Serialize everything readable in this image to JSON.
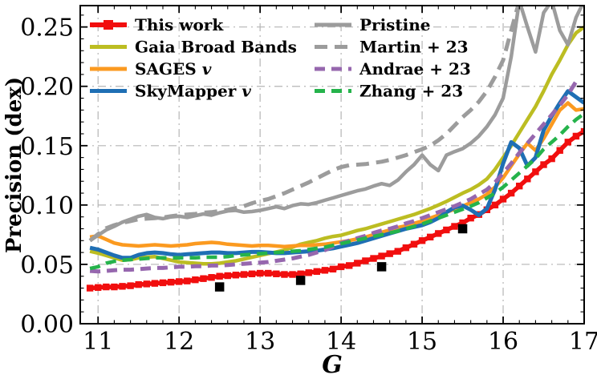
{
  "figure_title": "",
  "axes": {
    "x_tick_labels": [
      "11",
      "12",
      "13",
      "14",
      "15",
      "16",
      "17"
    ],
    "x_tick_values": [
      11,
      12,
      13,
      14,
      15,
      16,
      17
    ],
    "y_tick_labels": [
      "0.00",
      "0.05",
      "0.10",
      "0.15",
      "0.20",
      "0.25"
    ],
    "y_tick_values": [
      0,
      0.05,
      0.1,
      0.15,
      0.2,
      0.25
    ],
    "minor_x_step": 0.2,
    "minor_y_step": 0.01,
    "grid_color": "#b5b5b5",
    "spine_color": "#000000"
  },
  "legend": {
    "columns": [
      {
        "items": [
          {
            "label": "This work",
            "label_main": "This work",
            "label_italic": "",
            "series_index": 0
          },
          {
            "label": "Gaia Broad Bands",
            "label_main": "Gaia Broad Bands",
            "label_italic": "",
            "series_index": 1
          },
          {
            "label": "SAGES v",
            "label_main": "SAGES ",
            "label_italic": "v",
            "series_index": 2
          },
          {
            "label": "SkyMapper v",
            "label_main": "SkyMapper ",
            "label_italic": "v",
            "series_index": 3
          }
        ]
      },
      {
        "items": [
          {
            "label": "Pristine",
            "label_main": "Pristine",
            "label_italic": "",
            "series_index": 4
          },
          {
            "label": "Martin + 23",
            "label_main": "Martin + 23",
            "label_italic": "",
            "series_index": 5
          },
          {
            "label": "Andrae + 23",
            "label_main": "Andrae + 23",
            "label_italic": "",
            "series_index": 6
          },
          {
            "label": "Zhang + 23",
            "label_main": "Zhang + 23",
            "label_italic": "",
            "series_index": 7
          }
        ]
      }
    ]
  },
  "chart_data": {
    "type": "line",
    "title": "",
    "xlabel": "G",
    "ylabel": "Precision (dex)",
    "xlim": [
      10.78,
      17.0
    ],
    "ylim": [
      0,
      0.268
    ],
    "grid": "dash-dot on major ticks, both axes",
    "legend_position": "upper left, two columns, no frame",
    "x": [
      10.9,
      11.0,
      11.1,
      11.2,
      11.3,
      11.4,
      11.5,
      11.6,
      11.7,
      11.8,
      11.9,
      12.0,
      12.1,
      12.2,
      12.3,
      12.4,
      12.5,
      12.6,
      12.7,
      12.8,
      12.9,
      13.0,
      13.1,
      13.2,
      13.3,
      13.4,
      13.5,
      13.6,
      13.7,
      13.8,
      13.9,
      14.0,
      14.1,
      14.2,
      14.3,
      14.4,
      14.5,
      14.6,
      14.7,
      14.8,
      14.9,
      15.0,
      15.1,
      15.2,
      15.3,
      15.4,
      15.5,
      15.6,
      15.7,
      15.8,
      15.9,
      16.0,
      16.1,
      16.2,
      16.3,
      16.4,
      16.5,
      16.6,
      16.7,
      16.8,
      16.9,
      17.0
    ],
    "series": [
      {
        "name": "This work",
        "color": "#f10e0e",
        "width": 5.5,
        "dash": null,
        "marker": "square",
        "marker_size": 8.4,
        "values": [
          0.03,
          0.0305,
          0.031,
          0.031,
          0.0315,
          0.032,
          0.033,
          0.0335,
          0.034,
          0.0345,
          0.035,
          0.0355,
          0.036,
          0.037,
          0.038,
          0.039,
          0.04,
          0.0405,
          0.041,
          0.0415,
          0.042,
          0.0425,
          0.0425,
          0.042,
          0.0415,
          0.0415,
          0.042,
          0.043,
          0.044,
          0.045,
          0.046,
          0.048,
          0.049,
          0.051,
          0.053,
          0.055,
          0.057,
          0.059,
          0.061,
          0.064,
          0.067,
          0.07,
          0.073,
          0.076,
          0.079,
          0.082,
          0.085,
          0.089,
          0.092,
          0.096,
          0.1,
          0.105,
          0.11,
          0.116,
          0.122,
          0.128,
          0.134,
          0.139,
          0.146,
          0.153,
          0.158,
          0.162
        ]
      },
      {
        "name": "Gaia Broad Bands",
        "color": "#bcbd22",
        "width": 4.5,
        "dash": null,
        "marker": null,
        "marker_size": 0,
        "values": [
          0.061,
          0.0595,
          0.0575,
          0.0555,
          0.0535,
          0.054,
          0.0555,
          0.056,
          0.0565,
          0.055,
          0.0535,
          0.052,
          0.0515,
          0.051,
          0.0505,
          0.0505,
          0.051,
          0.052,
          0.053,
          0.0545,
          0.056,
          0.0575,
          0.059,
          0.0605,
          0.062,
          0.0645,
          0.067,
          0.0685,
          0.07,
          0.072,
          0.0735,
          0.0745,
          0.0765,
          0.0785,
          0.08,
          0.082,
          0.084,
          0.086,
          0.088,
          0.09,
          0.092,
          0.0945,
          0.097,
          0.1,
          0.103,
          0.1065,
          0.11,
          0.113,
          0.117,
          0.122,
          0.13,
          0.14,
          0.15,
          0.161,
          0.172,
          0.183,
          0.196,
          0.21,
          0.222,
          0.235,
          0.245,
          0.25
        ]
      },
      {
        "name": "SAGES v",
        "color": "#fb9a20",
        "width": 4.5,
        "dash": null,
        "marker": null,
        "marker_size": 0,
        "values": [
          0.073,
          0.074,
          0.071,
          0.068,
          0.0665,
          0.066,
          0.0655,
          0.066,
          0.0665,
          0.066,
          0.0655,
          0.066,
          0.0665,
          0.0675,
          0.068,
          0.0685,
          0.068,
          0.067,
          0.0665,
          0.066,
          0.0655,
          0.066,
          0.066,
          0.0655,
          0.065,
          0.0655,
          0.066,
          0.066,
          0.0665,
          0.067,
          0.068,
          0.069,
          0.07,
          0.0715,
          0.073,
          0.075,
          0.077,
          0.079,
          0.081,
          0.0825,
          0.0845,
          0.0865,
          0.089,
          0.0915,
          0.094,
          0.0965,
          0.099,
          0.102,
          0.105,
          0.109,
          0.115,
          0.123,
          0.133,
          0.143,
          0.152,
          0.146,
          0.156,
          0.168,
          0.18,
          0.186,
          0.18,
          0.181
        ]
      },
      {
        "name": "SkyMapper v",
        "color": "#1f6fb4",
        "width": 5,
        "dash": null,
        "marker": null,
        "marker_size": 0,
        "values": [
          0.064,
          0.0625,
          0.06,
          0.0575,
          0.0555,
          0.0555,
          0.058,
          0.0595,
          0.06,
          0.0595,
          0.0585,
          0.058,
          0.0585,
          0.059,
          0.0595,
          0.06,
          0.06,
          0.0595,
          0.0595,
          0.06,
          0.0605,
          0.0605,
          0.06,
          0.0595,
          0.0595,
          0.06,
          0.0605,
          0.061,
          0.0615,
          0.0625,
          0.0635,
          0.065,
          0.0665,
          0.068,
          0.07,
          0.072,
          0.074,
          0.076,
          0.078,
          0.08,
          0.0815,
          0.083,
          0.0855,
          0.089,
          0.094,
          0.098,
          0.0995,
          0.096,
          0.0915,
          0.097,
          0.113,
          0.135,
          0.153,
          0.148,
          0.133,
          0.14,
          0.163,
          0.175,
          0.186,
          0.196,
          0.191,
          0.186
        ]
      },
      {
        "name": "Pristine",
        "color": "#9c9c9c",
        "width": 4.5,
        "dash": null,
        "marker": null,
        "marker_size": 0,
        "values": [
          0.07,
          0.0745,
          0.079,
          0.082,
          0.0855,
          0.088,
          0.0905,
          0.092,
          0.0895,
          0.0885,
          0.09,
          0.0905,
          0.0895,
          0.091,
          0.0925,
          0.0915,
          0.0935,
          0.095,
          0.0955,
          0.094,
          0.0945,
          0.0955,
          0.097,
          0.0985,
          0.097,
          0.0995,
          0.101,
          0.1005,
          0.102,
          0.104,
          0.106,
          0.108,
          0.11,
          0.112,
          0.1135,
          0.116,
          0.118,
          0.1165,
          0.121,
          0.128,
          0.134,
          0.142,
          0.134,
          0.129,
          0.142,
          0.145,
          0.1475,
          0.152,
          0.158,
          0.166,
          0.176,
          0.19,
          0.225,
          0.272,
          0.25,
          0.229,
          0.262,
          0.272,
          0.247,
          0.235,
          0.258,
          0.272
        ]
      },
      {
        "name": "Martin + 23",
        "color": "#9c9c9c",
        "width": 5,
        "dash": [
          16,
          9
        ],
        "marker": null,
        "marker_size": 0,
        "values": [
          0.07,
          0.0755,
          0.0805,
          0.083,
          0.085,
          0.0865,
          0.088,
          0.0885,
          0.089,
          0.0895,
          0.0905,
          0.0915,
          0.092,
          0.0925,
          0.0935,
          0.094,
          0.095,
          0.096,
          0.0975,
          0.099,
          0.1015,
          0.1035,
          0.105,
          0.1075,
          0.11,
          0.113,
          0.116,
          0.119,
          0.1225,
          0.126,
          0.1295,
          0.132,
          0.1335,
          0.134,
          0.1345,
          0.1355,
          0.1365,
          0.138,
          0.14,
          0.142,
          0.1445,
          0.147,
          0.15,
          0.1545,
          0.16,
          0.167,
          0.174,
          0.18,
          0.187,
          0.196,
          0.208,
          0.222,
          0.247,
          0.272,
          null,
          null,
          null,
          null,
          null,
          null,
          null,
          null
        ]
      },
      {
        "name": "Andrae + 23",
        "color": "#9667ae",
        "width": 5,
        "dash": [
          13,
          8
        ],
        "marker": null,
        "marker_size": 0,
        "values": [
          0.0445,
          0.044,
          0.0445,
          0.045,
          0.0455,
          0.0455,
          0.046,
          0.0465,
          0.047,
          0.047,
          0.0475,
          0.048,
          0.048,
          0.0485,
          0.0485,
          0.049,
          0.049,
          0.0495,
          0.05,
          0.0505,
          0.051,
          0.0515,
          0.052,
          0.053,
          0.054,
          0.055,
          0.0565,
          0.058,
          0.06,
          0.062,
          0.065,
          0.068,
          0.07,
          0.072,
          0.074,
          0.0765,
          0.0785,
          0.08,
          0.082,
          0.0845,
          0.0865,
          0.089,
          0.0915,
          0.094,
          0.0965,
          0.099,
          0.102,
          0.105,
          0.109,
          0.113,
          0.119,
          0.127,
          0.135,
          0.144,
          0.152,
          0.16,
          0.168,
          0.176,
          0.184,
          0.193,
          0.204,
          null
        ]
      },
      {
        "name": "Zhang + 23",
        "color": "#25b34b",
        "width": 4.5,
        "dash": [
          13,
          8
        ],
        "marker": null,
        "marker_size": 0,
        "values": [
          0.0465,
          0.048,
          0.051,
          0.0525,
          0.0535,
          0.054,
          0.0545,
          0.055,
          0.0555,
          0.0555,
          0.0555,
          0.0555,
          0.0555,
          0.0555,
          0.056,
          0.056,
          0.056,
          0.0565,
          0.0575,
          0.058,
          0.0585,
          0.059,
          0.0595,
          0.06,
          0.0605,
          0.061,
          0.0615,
          0.0625,
          0.0635,
          0.0645,
          0.066,
          0.0675,
          0.069,
          0.0705,
          0.072,
          0.0735,
          0.075,
          0.0765,
          0.078,
          0.08,
          0.082,
          0.084,
          0.0865,
          0.089,
          0.0915,
          0.094,
          0.0965,
          0.099,
          0.102,
          0.106,
          0.11,
          0.115,
          0.121,
          0.127,
          0.133,
          0.139,
          0.147,
          0.153,
          0.159,
          0.166,
          0.172,
          0.177
        ]
      }
    ],
    "scatter": {
      "name": "black squares",
      "color": "#000000",
      "marker": "square",
      "marker_size": 11.5,
      "x": [
        12.5,
        13.5,
        14.5,
        15.5
      ],
      "y": [
        0.031,
        0.0365,
        0.048,
        0.08
      ]
    }
  }
}
